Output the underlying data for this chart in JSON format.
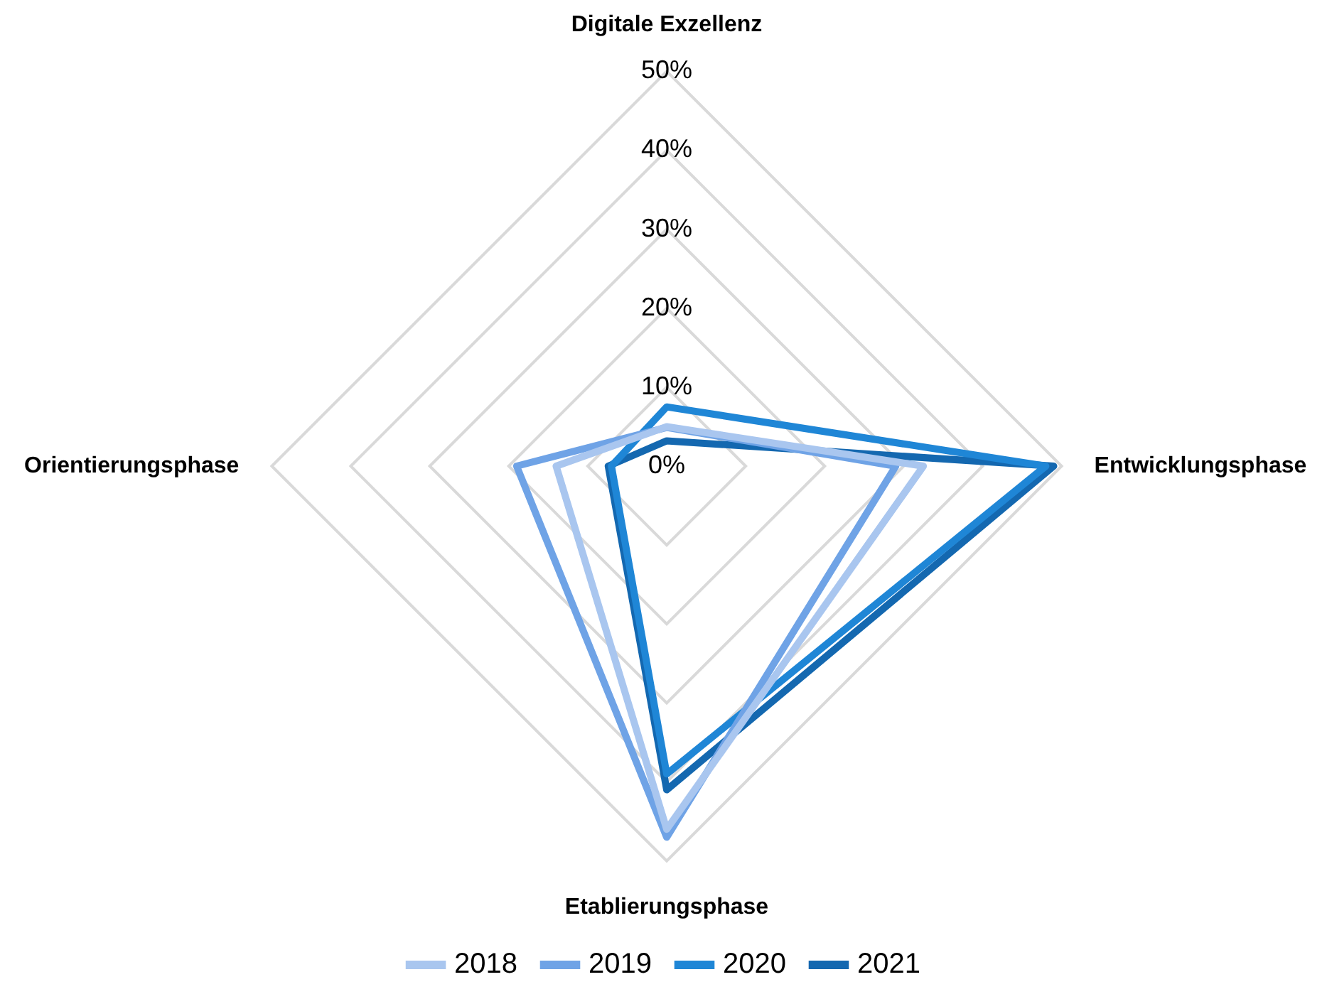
{
  "chart_data": {
    "type": "radar",
    "categories": [
      "Digitale Exzellenz",
      "Entwicklungsphase",
      "Etablierungsphase",
      "Orientierungsphase"
    ],
    "series": [
      {
        "name": "2018",
        "color": "#a9c6ef",
        "values": [
          5,
          32.5,
          46,
          14
        ]
      },
      {
        "name": "2019",
        "color": "#6fa3e6",
        "values": [
          4.9,
          29,
          47,
          19
        ]
      },
      {
        "name": "2020",
        "color": "#1f86d6",
        "values": [
          7.5,
          48,
          39,
          7
        ]
      },
      {
        "name": "2021",
        "color": "#1468b0",
        "values": [
          3.2,
          49,
          41,
          7.4
        ]
      }
    ],
    "ylim": [
      0,
      50
    ],
    "yticks": [
      {
        "value": 0,
        "label": "0%"
      },
      {
        "value": 10,
        "label": "10%"
      },
      {
        "value": 20,
        "label": "20%"
      },
      {
        "value": 30,
        "label": "30%"
      },
      {
        "value": 40,
        "label": "40%"
      },
      {
        "value": 50,
        "label": "50%"
      }
    ],
    "grid": true,
    "legend": "bottom"
  }
}
